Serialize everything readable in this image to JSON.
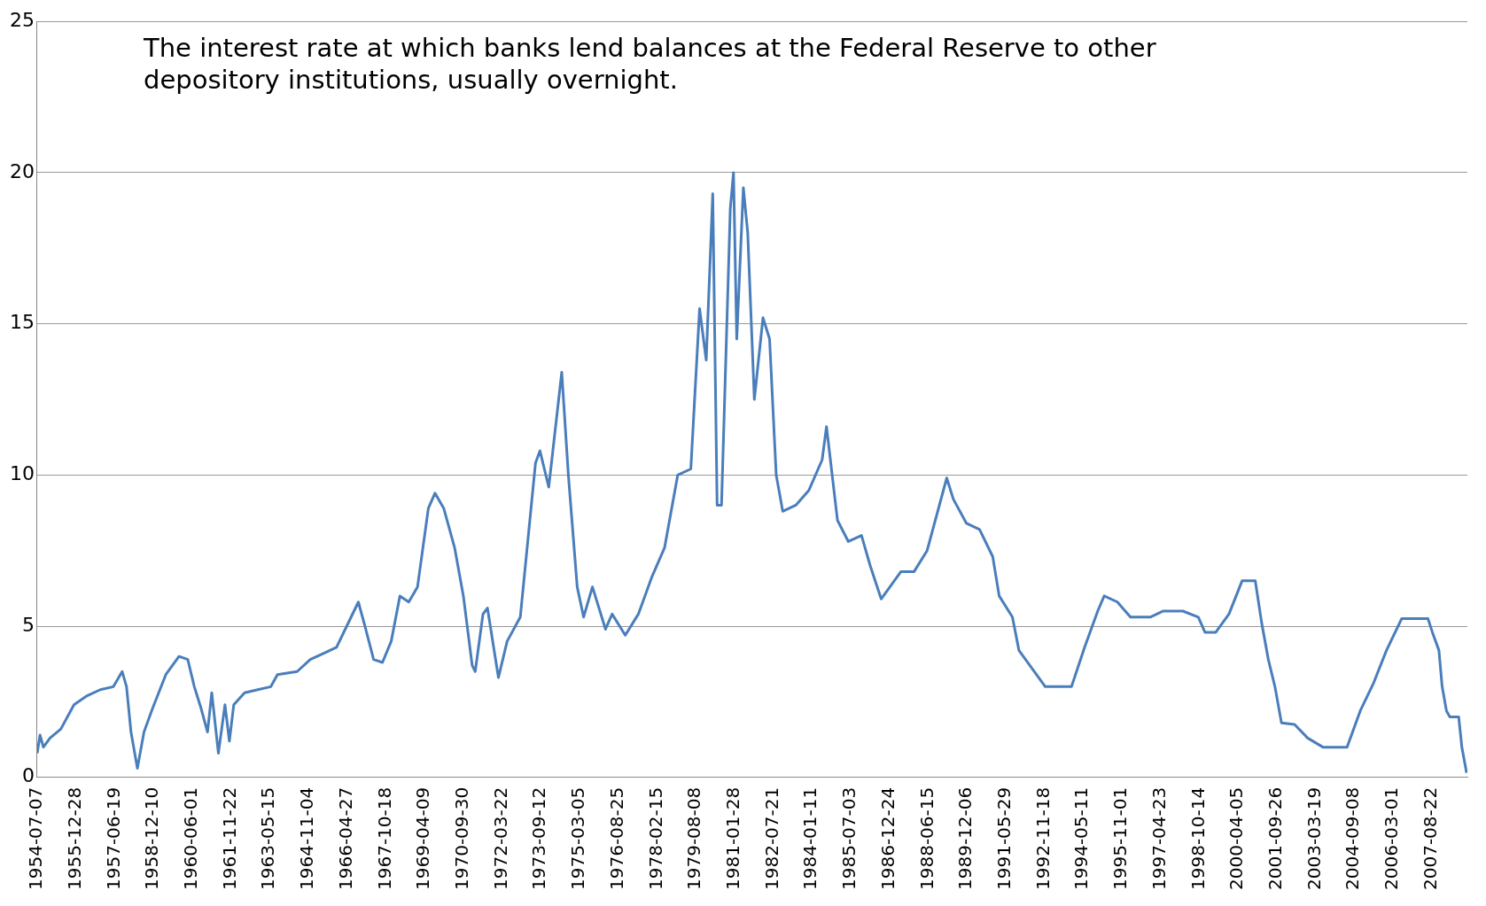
{
  "chart_data": {
    "type": "line",
    "annotations": [
      "The interest rate at which banks lend balances at the Federal Reserve to other depository institutions, usually overnight."
    ],
    "x": [
      "1954-07-07",
      "1954-08-15",
      "1954-10-01",
      "1955-01-01",
      "1955-06-01",
      "1955-12-01",
      "1956-06-01",
      "1956-12-01",
      "1957-06-01",
      "1957-10-01",
      "1957-12-01",
      "1958-02-01",
      "1958-05-01",
      "1958-08-01",
      "1958-12-01",
      "1959-06-01",
      "1959-12-01",
      "1960-04-01",
      "1960-07-01",
      "1960-10-01",
      "1961-01-01",
      "1961-03-01",
      "1961-06-01",
      "1961-09-01",
      "1961-11-01",
      "1962-01-01",
      "1962-06-01",
      "1962-12-01",
      "1963-06-01",
      "1963-09-01",
      "1964-06-01",
      "1964-12-01",
      "1965-06-01",
      "1965-12-01",
      "1966-06-01",
      "1966-10-01",
      "1967-01-01",
      "1967-05-01",
      "1967-09-01",
      "1968-01-01",
      "1968-05-01",
      "1968-09-01",
      "1969-01-01",
      "1969-06-01",
      "1969-09-01",
      "1970-01-01",
      "1970-06-01",
      "1970-10-01",
      "1971-02-01",
      "1971-03-15",
      "1971-07-01",
      "1971-09-01",
      "1972-02-01",
      "1972-06-01",
      "1972-12-01",
      "1973-07-01",
      "1973-09-01",
      "1974-01-01",
      "1974-07-01",
      "1974-10-01",
      "1975-02-01",
      "1975-05-01",
      "1975-09-01",
      "1976-03-01",
      "1976-06-01",
      "1976-12-01",
      "1977-06-01",
      "1977-12-01",
      "1978-06-01",
      "1978-12-01",
      "1979-06-01",
      "1979-10-01",
      "1980-01-01",
      "1980-04-01",
      "1980-06-01",
      "1980-08-01",
      "1980-12-01",
      "1981-01-15",
      "1981-03-01",
      "1981-06-01",
      "1981-08-01",
      "1981-11-01",
      "1982-03-01",
      "1982-06-01",
      "1982-09-01",
      "1982-12-01",
      "1983-06-01",
      "1983-12-01",
      "1984-06-01",
      "1984-08-01",
      "1985-01-01",
      "1985-06-01",
      "1985-12-01",
      "1986-04-01",
      "1986-09-01",
      "1986-12-01",
      "1987-06-01",
      "1987-12-01",
      "1988-06-01",
      "1989-03-01",
      "1989-06-01",
      "1989-12-01",
      "1990-06-01",
      "1990-12-01",
      "1991-03-01",
      "1991-09-01",
      "1991-12-01",
      "1992-06-01",
      "1992-12-01",
      "1993-06-01",
      "1993-12-01",
      "1994-06-01",
      "1994-12-01",
      "1995-03-01",
      "1995-09-01",
      "1996-03-01",
      "1996-12-01",
      "1997-06-01",
      "1998-03-01",
      "1998-10-01",
      "1999-01-01",
      "1999-06-01",
      "1999-12-01",
      "2000-06-01",
      "2000-12-01",
      "2001-03-01",
      "2001-06-01",
      "2001-09-01",
      "2001-12-01",
      "2002-06-01",
      "2002-12-01",
      "2003-07-01",
      "2004-06-01",
      "2004-12-01",
      "2005-06-01",
      "2005-12-01",
      "2006-07-01",
      "2007-07-01",
      "2007-09-01",
      "2007-12-01",
      "2008-01-15",
      "2008-03-15",
      "2008-05-01",
      "2008-09-01",
      "2008-10-15",
      "2008-12-20"
    ],
    "series": [
      {
        "color": "#4a7ebb",
        "values": [
          0.8,
          1.4,
          1.0,
          1.3,
          1.6,
          2.4,
          2.7,
          2.9,
          3.0,
          3.5,
          3.0,
          1.5,
          0.3,
          1.5,
          2.3,
          3.4,
          4.0,
          3.9,
          3.0,
          2.3,
          1.5,
          2.8,
          0.8,
          2.4,
          1.2,
          2.4,
          2.8,
          2.9,
          3.0,
          3.4,
          3.5,
          3.9,
          4.1,
          4.3,
          5.2,
          5.8,
          5.0,
          3.9,
          3.8,
          4.5,
          6.0,
          5.8,
          6.3,
          8.9,
          9.4,
          8.9,
          7.6,
          6.0,
          3.7,
          3.5,
          5.4,
          5.6,
          3.3,
          4.5,
          5.3,
          10.4,
          10.8,
          9.6,
          13.4,
          10.0,
          6.3,
          5.3,
          6.3,
          4.9,
          5.4,
          4.7,
          5.4,
          6.6,
          7.6,
          10.0,
          10.2,
          15.5,
          13.8,
          19.3,
          9.0,
          9.0,
          18.8,
          20.0,
          14.5,
          19.5,
          18.0,
          12.5,
          15.2,
          14.5,
          10.0,
          8.8,
          9.0,
          9.5,
          10.5,
          11.6,
          8.5,
          7.8,
          8.0,
          7.0,
          5.9,
          6.2,
          6.8,
          6.8,
          7.5,
          9.9,
          9.2,
          8.4,
          8.2,
          7.3,
          6.0,
          5.3,
          4.2,
          3.6,
          3.0,
          3.0,
          3.0,
          4.3,
          5.5,
          6.0,
          5.8,
          5.3,
          5.3,
          5.5,
          5.5,
          5.3,
          4.8,
          4.8,
          5.4,
          6.5,
          6.5,
          5.1,
          3.9,
          3.0,
          1.8,
          1.75,
          1.3,
          1.0,
          1.0,
          2.2,
          3.1,
          4.2,
          5.25,
          5.25,
          4.8,
          4.2,
          3.0,
          2.2,
          2.0,
          2.0,
          1.0,
          0.15
        ]
      }
    ],
    "xlim": [
      "1954-07-07",
      "2008-12-31"
    ],
    "xticks": [
      "1954-07-07",
      "1955-12-28",
      "1957-06-19",
      "1958-12-10",
      "1960-06-01",
      "1961-11-22",
      "1963-05-15",
      "1964-11-04",
      "1966-04-27",
      "1967-10-18",
      "1969-04-09",
      "1970-09-30",
      "1972-03-22",
      "1973-09-12",
      "1975-03-05",
      "1976-08-25",
      "1978-02-15",
      "1979-08-08",
      "1981-01-28",
      "1982-07-21",
      "1984-01-11",
      "1985-07-03",
      "1986-12-24",
      "1988-06-15",
      "1989-12-06",
      "1991-05-29",
      "1992-11-18",
      "1994-05-11",
      "1995-11-01",
      "1997-04-23",
      "1998-10-14",
      "2000-04-05",
      "2001-09-26",
      "2003-03-19",
      "2004-09-08",
      "2006-03-01",
      "2007-08-22"
    ],
    "ylim": [
      0,
      25
    ],
    "yticks": [
      0,
      5,
      10,
      15,
      20,
      25
    ],
    "grid": "y",
    "legend": false,
    "marker": "none",
    "line_style": "solid"
  }
}
